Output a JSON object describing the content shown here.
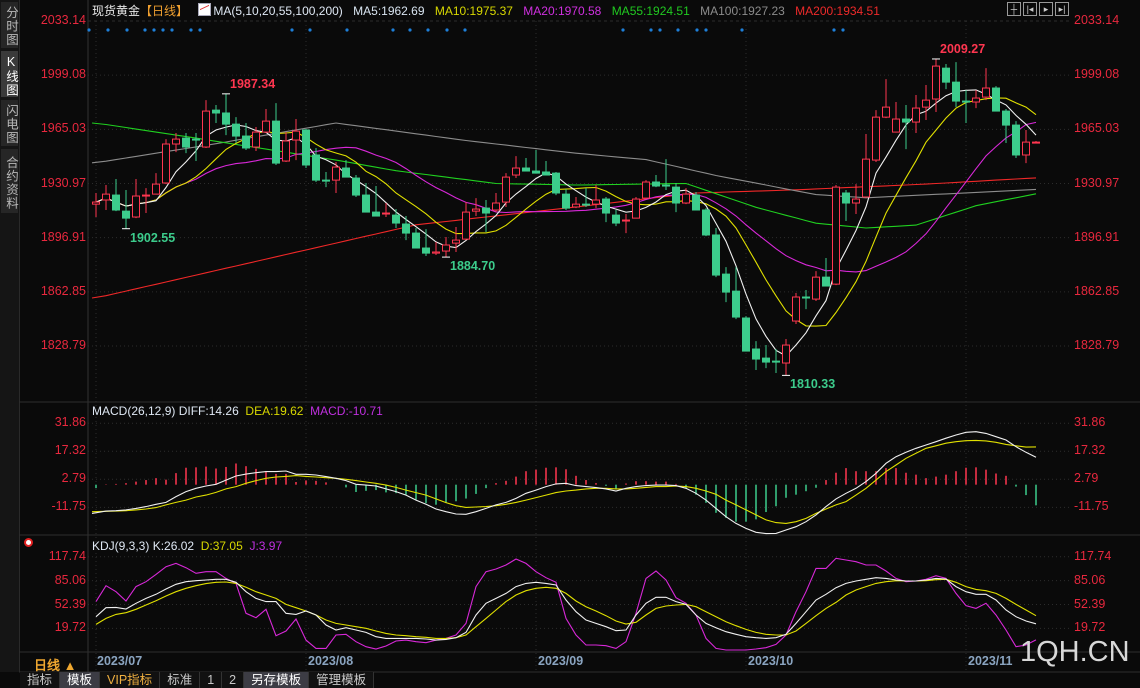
{
  "sidebar": {
    "tabs": [
      {
        "label": "分时图",
        "active": false
      },
      {
        "label": "K线图",
        "active": true
      },
      {
        "label": "闪电图",
        "active": false
      },
      {
        "label": "合约资料",
        "active": false
      }
    ]
  },
  "header": {
    "instrument": "现货黄金",
    "period": "【日线】",
    "ma_params": "MA(5,10,20,55,100,200)",
    "ma_values": [
      {
        "label": "MA5:1962.69",
        "color": "#d8e4f0"
      },
      {
        "label": "MA10:1975.37",
        "color": "#d8d800"
      },
      {
        "label": "MA20:1970.58",
        "color": "#d030e0"
      },
      {
        "label": "MA55:1924.51",
        "color": "#20c820"
      },
      {
        "label": "MA100:1927.23",
        "color": "#8c8c8c"
      },
      {
        "label": "MA200:1934.51",
        "color": "#ee2a2a"
      }
    ],
    "tool_icons": [
      "crosshair-icon",
      "zoom-left-icon",
      "play-icon",
      "zoom-right-icon"
    ]
  },
  "colors": {
    "up": "#ff3650",
    "down": "#3ccc8c",
    "ma5": "#f0f0f0",
    "ma10": "#e0e000",
    "ma20": "#d828d8",
    "ma55": "#20d020",
    "ma100": "#8c8c8c",
    "ma200": "#f02828",
    "axis_text": "#e8283e",
    "event_dot": "#1e7fd8"
  },
  "main_chart": {
    "price_ticks": [
      "2033.14",
      "1999.08",
      "1965.03",
      "1930.97",
      "1896.91",
      "1862.85",
      "1828.79"
    ],
    "candles": [
      [
        1918.0,
        1925.0,
        1909.9,
        1919.3
      ],
      [
        1920.6,
        1930.0,
        1914.3,
        1924.3
      ],
      [
        1923.7,
        1933.8,
        1913.6,
        1914.3
      ],
      [
        1913.6,
        1926.9,
        1902.55,
        1909.2
      ],
      [
        1909.9,
        1933.8,
        1909.2,
        1923.1
      ],
      [
        1923.1,
        1928.1,
        1912.4,
        1923.7
      ],
      [
        1924.3,
        1937.5,
        1924.3,
        1930.6
      ],
      [
        1931.3,
        1958.9,
        1930.6,
        1955.8
      ],
      [
        1955.8,
        1962.7,
        1950.7,
        1958.9
      ],
      [
        1959.5,
        1962.7,
        1950.1,
        1953.9
      ],
      [
        1958.9,
        1962.7,
        1945.1,
        1958.3
      ],
      [
        1953.9,
        1983.4,
        1953.3,
        1976.5
      ],
      [
        1977.1,
        1980.3,
        1969.0,
        1975.3
      ],
      [
        1975.3,
        1987.34,
        1961.4,
        1968.3
      ],
      [
        1968.3,
        1972.7,
        1956.4,
        1960.8
      ],
      [
        1960.8,
        1969.0,
        1952.0,
        1953.3
      ],
      [
        1953.9,
        1966.5,
        1951.4,
        1963.3
      ],
      [
        1963.3,
        1977.8,
        1962.7,
        1970.2
      ],
      [
        1970.2,
        1981.5,
        1942.6,
        1943.8
      ],
      [
        1945.1,
        1963.3,
        1944.5,
        1957.7
      ],
      [
        1958.3,
        1971.5,
        1945.7,
        1963.9
      ],
      [
        1964.6,
        1965.2,
        1940.7,
        1942.6
      ],
      [
        1948.9,
        1953.3,
        1931.9,
        1933.1
      ],
      [
        1933.1,
        1938.2,
        1928.7,
        1932.5
      ],
      [
        1933.1,
        1944.5,
        1925.0,
        1941.3
      ],
      [
        1940.7,
        1945.7,
        1935.0,
        1935.0
      ],
      [
        1934.4,
        1936.3,
        1922.5,
        1923.7
      ],
      [
        1923.7,
        1931.3,
        1913.0,
        1913.0
      ],
      [
        1913.0,
        1929.4,
        1910.5,
        1910.5
      ],
      [
        1911.8,
        1918.7,
        1909.9,
        1912.4
      ],
      [
        1911.1,
        1914.9,
        1903.0,
        1906.1
      ],
      [
        1905.5,
        1910.5,
        1895.4,
        1899.8
      ],
      [
        1899.8,
        1903.0,
        1890.4,
        1890.4
      ],
      [
        1890.4,
        1902.3,
        1885.4,
        1887.2
      ],
      [
        1887.2,
        1894.2,
        1886.0,
        1887.9
      ],
      [
        1888.5,
        1897.3,
        1884.7,
        1892.3
      ],
      [
        1893.5,
        1903.6,
        1887.9,
        1895.4
      ],
      [
        1896.0,
        1919.3,
        1895.4,
        1913.0
      ],
      [
        1913.6,
        1921.8,
        1910.5,
        1914.9
      ],
      [
        1915.5,
        1920.6,
        1900.4,
        1912.4
      ],
      [
        1914.3,
        1925.0,
        1913.0,
        1918.7
      ],
      [
        1919.3,
        1937.5,
        1916.2,
        1935.0
      ],
      [
        1936.3,
        1948.2,
        1934.4,
        1940.7
      ],
      [
        1940.7,
        1947.0,
        1938.8,
        1938.8
      ],
      [
        1938.8,
        1952.0,
        1937.5,
        1937.5
      ],
      [
        1938.2,
        1945.1,
        1936.3,
        1936.3
      ],
      [
        1937.5,
        1938.2,
        1923.7,
        1925.0
      ],
      [
        1924.3,
        1927.5,
        1914.3,
        1915.5
      ],
      [
        1916.2,
        1922.5,
        1915.5,
        1918.0
      ],
      [
        1918.0,
        1928.1,
        1916.2,
        1917.4
      ],
      [
        1918.0,
        1930.0,
        1915.5,
        1920.6
      ],
      [
        1921.2,
        1922.5,
        1906.7,
        1912.4
      ],
      [
        1911.1,
        1914.3,
        1904.2,
        1906.1
      ],
      [
        1907.4,
        1911.8,
        1899.8,
        1908.0
      ],
      [
        1909.2,
        1922.5,
        1909.2,
        1921.2
      ],
      [
        1921.8,
        1933.1,
        1921.8,
        1931.9
      ],
      [
        1931.9,
        1936.3,
        1928.7,
        1929.4
      ],
      [
        1930.0,
        1946.3,
        1926.9,
        1929.4
      ],
      [
        1928.7,
        1931.3,
        1913.0,
        1918.7
      ],
      [
        1918.7,
        1928.1,
        1918.0,
        1924.3
      ],
      [
        1923.7,
        1925.6,
        1914.3,
        1914.3
      ],
      [
        1914.3,
        1915.5,
        1897.9,
        1898.6
      ],
      [
        1898.6,
        1903.0,
        1872.1,
        1873.4
      ],
      [
        1874.0,
        1878.4,
        1856.4,
        1862.7
      ],
      [
        1863.3,
        1878.4,
        1845.7,
        1847.0
      ],
      [
        1846.4,
        1847.6,
        1825.6,
        1825.6
      ],
      [
        1826.9,
        1831.9,
        1813.7,
        1820.6
      ],
      [
        1821.2,
        1829.4,
        1814.9,
        1818.7
      ],
      [
        1819.3,
        1826.9,
        1811.8,
        1818.7
      ],
      [
        1818.1,
        1833.2,
        1810.33,
        1829.4
      ],
      [
        1844.5,
        1862.1,
        1842.6,
        1859.6
      ],
      [
        1859.6,
        1864.0,
        1852.0,
        1859.0
      ],
      [
        1858.3,
        1875.9,
        1857.1,
        1872.1
      ],
      [
        1872.1,
        1884.1,
        1866.5,
        1866.5
      ],
      [
        1867.7,
        1930.0,
        1867.1,
        1928.7
      ],
      [
        1925.0,
        1926.9,
        1907.4,
        1918.7
      ],
      [
        1918.7,
        1930.6,
        1911.8,
        1921.2
      ],
      [
        1922.5,
        1962.1,
        1922.5,
        1946.3
      ],
      [
        1945.7,
        1977.1,
        1944.5,
        1972.7
      ],
      [
        1972.7,
        1996.6,
        1972.1,
        1979.0
      ],
      [
        1963.3,
        1982.2,
        1963.3,
        1971.5
      ],
      [
        1971.5,
        1980.3,
        1952.6,
        1969.6
      ],
      [
        1969.6,
        1986.6,
        1962.7,
        1978.4
      ],
      [
        1979.0,
        1992.9,
        1970.9,
        1983.4
      ],
      [
        1984.1,
        2009.27,
        1975.9,
        2004.8
      ],
      [
        2003.5,
        2006.1,
        1990.3,
        1994.7
      ],
      [
        1994.7,
        2007.3,
        1979.0,
        1982.8
      ],
      [
        1982.8,
        1989.7,
        1969.0,
        1982.2
      ],
      [
        1982.2,
        1989.7,
        1978.4,
        1984.7
      ],
      [
        1985.3,
        2003.5,
        1983.4,
        1991.0
      ],
      [
        1991.0,
        1992.2,
        1976.5,
        1976.5
      ],
      [
        1976.5,
        1977.8,
        1956.4,
        1967.7
      ],
      [
        1967.7,
        1970.2,
        1947.0,
        1948.9
      ],
      [
        1948.9,
        1964.6,
        1943.8,
        1957.0
      ],
      [
        1957.0,
        1957.7,
        1956.4,
        1957.0
      ]
    ],
    "ma55_points": [
      [
        0,
        1969
      ],
      [
        10,
        1959.5
      ],
      [
        24,
        1945.7
      ],
      [
        30,
        1939
      ],
      [
        40,
        1931
      ],
      [
        48,
        1930
      ],
      [
        59,
        1931
      ],
      [
        66,
        1916
      ],
      [
        72,
        1906
      ],
      [
        77,
        1903
      ],
      [
        82,
        1904.8
      ],
      [
        88,
        1917
      ],
      [
        94,
        1924.51
      ]
    ],
    "ma100_points": [
      [
        0,
        1944
      ],
      [
        12,
        1956
      ],
      [
        24,
        1969
      ],
      [
        37,
        1958
      ],
      [
        48,
        1950
      ],
      [
        55,
        1946
      ],
      [
        62,
        1936
      ],
      [
        72,
        1924
      ],
      [
        77,
        1922
      ],
      [
        94,
        1927.23
      ]
    ],
    "ma200_points": [
      [
        0,
        1859
      ],
      [
        32,
        1905
      ],
      [
        47,
        1915.5
      ],
      [
        60,
        1925
      ],
      [
        70,
        1927
      ],
      [
        83,
        1930.6
      ],
      [
        94,
        1934.51
      ]
    ],
    "annotations": [
      {
        "text": "1987.34",
        "index": 13,
        "kind": "high",
        "color": "#ff3650"
      },
      {
        "text": "1902.55",
        "index": 3,
        "kind": "low",
        "color": "#3ccc8c"
      },
      {
        "text": "1884.70",
        "index": 35,
        "kind": "low",
        "color": "#3ccc8c"
      },
      {
        "text": "1810.33",
        "index": 69,
        "kind": "low",
        "color": "#3ccc8c"
      },
      {
        "text": "2009.27",
        "index": 84,
        "kind": "high",
        "color": "#ff3650"
      }
    ]
  },
  "macd": {
    "label": "MACD(26,12,9)",
    "diff_label": "DIFF:14.26",
    "dea_label": "DEA:19.62",
    "macd_label": "MACD:-10.71",
    "ticks": [
      "31.86",
      "17.32",
      "2.79",
      "-11.75"
    ],
    "diff": [
      -14.9,
      -13.7,
      -13.5,
      -13.1,
      -12.3,
      -11.4,
      -10.2,
      -9.2,
      -6.2,
      -3.6,
      -1.9,
      -0.7,
      0.2,
      2.4,
      4.5,
      5.5,
      6.2,
      6.8,
      6.8,
      7.1,
      5.4,
      5.4,
      5.0,
      4.2,
      3.3,
      2.1,
      0.2,
      -0.2,
      -0.7,
      -2.2,
      -3.6,
      -5.4,
      -8.0,
      -10.2,
      -12.6,
      -14.0,
      -15.2,
      -15.4,
      -14.0,
      -12.3,
      -10.5,
      -9.2,
      -7.1,
      -4.5,
      -2.8,
      -1.0,
      0.4,
      0.7,
      -0.5,
      -1.0,
      -1.5,
      -2.2,
      -3.3,
      -1.9,
      -1.0,
      -0.5,
      -0.2,
      -0.2,
      -0.5,
      -1.9,
      -4.5,
      -8.0,
      -12.3,
      -16.6,
      -20.1,
      -22.7,
      -24.7,
      -25.4,
      -25.3,
      -23.5,
      -21.8,
      -19.2,
      -15.7,
      -11.4,
      -7.4,
      -4.5,
      -1.9,
      1.6,
      5.9,
      11.1,
      14.5,
      16.8,
      18.9,
      20.6,
      22.3,
      24.1,
      25.8,
      27.2,
      27.5,
      26.6,
      24.9,
      23.2,
      19.7,
      16.8,
      14.26
    ],
    "dea": [
      -14.0,
      -13.8,
      -13.7,
      -13.5,
      -13.1,
      -12.6,
      -11.9,
      -10.5,
      -9.2,
      -8.0,
      -6.4,
      -5.4,
      -4.0,
      -2.2,
      -1.0,
      0.7,
      2.1,
      3.3,
      4.0,
      4.3,
      4.7,
      4.3,
      4.0,
      3.6,
      3.3,
      2.8,
      2.1,
      1.4,
      0.7,
      -0.2,
      -1.4,
      -2.8,
      -4.1,
      -5.4,
      -7.4,
      -9.3,
      -10.9,
      -11.8,
      -11.6,
      -11.4,
      -10.9,
      -10.2,
      -9.2,
      -8.0,
      -6.7,
      -5.4,
      -4.1,
      -3.3,
      -2.8,
      -2.2,
      -1.9,
      -1.9,
      -2.2,
      -2.2,
      -1.9,
      -1.4,
      -1.0,
      -1.0,
      -0.7,
      -1.0,
      -1.9,
      -3.3,
      -5.0,
      -8.0,
      -10.5,
      -13.1,
      -15.7,
      -18.3,
      -19.7,
      -20.1,
      -19.2,
      -17.5,
      -14.9,
      -12.6,
      -10.5,
      -8.8,
      -5.4,
      -1.9,
      2.4,
      6.8,
      10.2,
      13.7,
      16.3,
      18.9,
      20.2,
      21.5,
      22.3,
      22.8,
      23.0,
      22.7,
      22.0,
      20.9,
      20.2,
      19.5,
      19.62
    ]
  },
  "kdj": {
    "label": "KDJ(9,3,3)",
    "k_label": "K:26.02",
    "d_label": "D:37.05",
    "j_label": "J:3.97",
    "ticks": [
      "117.74",
      "85.06",
      "52.39",
      "19.72"
    ],
    "k": [
      35.7,
      48.0,
      48.5,
      46.2,
      54.0,
      60.8,
      66.3,
      73.6,
      80.0,
      83.6,
      85.0,
      85.9,
      86.8,
      86.8,
      82.7,
      69.9,
      60.8,
      56.3,
      56.3,
      40.3,
      38.9,
      43.5,
      38.0,
      24.4,
      17.5,
      20.7,
      17.5,
      14.3,
      8.4,
      6.1,
      6.1,
      6.1,
      6.1,
      5.2,
      3.8,
      4.7,
      7.0,
      14.3,
      38.0,
      54.0,
      60.8,
      67.6,
      76.8,
      81.3,
      82.7,
      81.3,
      79.0,
      58.5,
      42.6,
      31.2,
      26.6,
      22.1,
      16.6,
      17.5,
      38.0,
      54.0,
      62.2,
      62.2,
      56.3,
      52.6,
      38.0,
      26.6,
      20.7,
      15.2,
      11.6,
      8.4,
      7.0,
      6.1,
      7.0,
      11.6,
      26.6,
      42.6,
      58.5,
      66.3,
      75.4,
      81.3,
      84.5,
      86.8,
      89.0,
      88.1,
      85.9,
      84.5,
      84.5,
      85.9,
      88.1,
      87.2,
      76.8,
      69.9,
      66.3,
      66.3,
      58.5,
      44.9,
      35.7,
      29.8,
      26.02
    ],
    "d": [
      25.2,
      33.4,
      38.9,
      41.2,
      45.8,
      51.7,
      57.6,
      64.0,
      69.9,
      74.5,
      78.1,
      80.9,
      82.7,
      83.1,
      81.3,
      75.9,
      69.9,
      65.4,
      60.8,
      52.6,
      48.0,
      43.5,
      38.0,
      31.2,
      26.6,
      24.4,
      22.1,
      19.8,
      16.2,
      12.9,
      10.7,
      9.8,
      8.4,
      7.5,
      6.1,
      6.1,
      7.0,
      10.7,
      22.1,
      33.4,
      44.9,
      56.3,
      65.4,
      71.3,
      74.5,
      75.9,
      74.5,
      67.6,
      57.2,
      49.4,
      43.5,
      37.1,
      29.8,
      25.7,
      28.0,
      38.0,
      47.1,
      50.3,
      51.7,
      52.6,
      49.4,
      42.6,
      35.7,
      28.9,
      23.4,
      18.4,
      14.3,
      11.6,
      10.7,
      10.7,
      16.2,
      26.6,
      37.1,
      47.1,
      55.3,
      65.4,
      72.2,
      76.8,
      81.3,
      83.6,
      85.0,
      84.5,
      84.5,
      85.0,
      86.3,
      86.8,
      82.7,
      76.8,
      73.1,
      71.3,
      67.6,
      60.8,
      52.6,
      44.9,
      37.05
    ],
    "j": [
      56.3,
      78.1,
      69.9,
      57.2,
      76.8,
      83.6,
      93.6,
      104.1,
      108.6,
      102.7,
      95.0,
      97.3,
      97.3,
      88.1,
      81.3,
      40.3,
      34.4,
      45.8,
      9.8,
      16.2,
      32.6,
      3.8,
      -7.6,
      -7.6,
      10.7,
      11.6,
      1.6,
      -5.3,
      -8.5,
      -4.4,
      2.5,
      3.8,
      1.6,
      0.2,
      3.8,
      6.1,
      10.7,
      26.6,
      76.8,
      97.3,
      100.9,
      106.4,
      114.6,
      108.6,
      97.3,
      89.0,
      82.7,
      33.4,
      10.7,
      -3.0,
      -3.0,
      -3.9,
      -7.6,
      1.6,
      40.3,
      88.1,
      98.2,
      85.9,
      61.7,
      54.0,
      38.0,
      6.1,
      -7.6,
      -9.8,
      -9.8,
      -9.8,
      -8.5,
      -6.6,
      -2.1,
      10.7,
      42.6,
      69.9,
      101.8,
      101.8,
      115.5,
      113.2,
      110.9,
      106.4,
      106.4,
      98.2,
      88.1,
      83.6,
      84.5,
      86.8,
      91.8,
      88.1,
      67.6,
      50.8,
      47.1,
      54.0,
      38.0,
      17.5,
      -5.3,
      -3.0,
      3.97
    ]
  },
  "date_axis": {
    "period_label": "日线 ▲",
    "dates": [
      "2023/07",
      "2023/08",
      "2023/09",
      "2023/10",
      "2023/11"
    ]
  },
  "bottom_tabs": [
    {
      "label": "指标",
      "active": false
    },
    {
      "label": "模板",
      "active": true
    },
    {
      "label": "VIP指标",
      "active": false,
      "vip": true
    },
    {
      "label": "标准",
      "active": false
    },
    {
      "label": "1",
      "active": false
    },
    {
      "label": "2",
      "active": false
    },
    {
      "label": "另存模板",
      "active": true
    },
    {
      "label": "管理模板",
      "active": false
    }
  ],
  "watermark": "1QH.CN"
}
